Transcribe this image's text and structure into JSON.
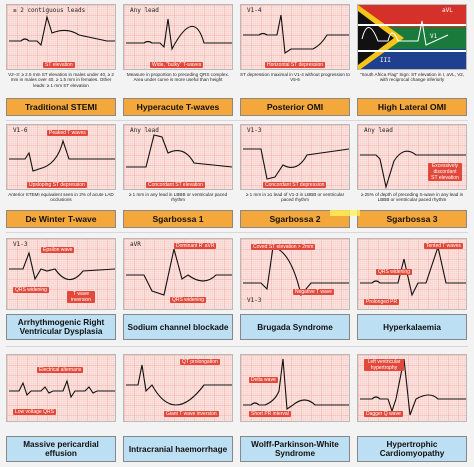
{
  "cards": [
    {
      "title": "Traditional STEMI",
      "lead": "≥ 2 contiguous leads",
      "tags": [
        "ST elevation"
      ],
      "caption": "V2–3: ≥ 2.5 mm ST elevation in males under 40, ≥ 2 mm in males over 40, ≥ 1.5 mm in females. Other leads: ≥ 1 mm ST elevation"
    },
    {
      "title": "Hyperacute T-waves",
      "lead": "Any lead",
      "tags": [
        "Wide, \"bulky\" T-waves"
      ],
      "caption": "Measure in proportion to preceding QRS complex. Area under curve is more useful than height"
    },
    {
      "title": "Posterior OMI",
      "lead": "V1-4",
      "tags": [
        "Horizontal ST depression"
      ],
      "caption": "ST depression maximal in V1-4 without progression to V5-6"
    },
    {
      "title": "High Lateral OMI",
      "lead": "",
      "tags": [
        "III",
        "aVL",
        "V1"
      ],
      "caption": "\"South Africa Flag\" Sign: ST elevation in I, aVL, V2, with reciprocal change inferiorly"
    },
    {
      "title": "De Winter T-wave",
      "lead": "V1-6",
      "tags": [
        "Peaked T waves",
        "Upsloping ST depression"
      ],
      "caption": "Anterior STEMI equivalent seen in 2% of acute LAD occlusions"
    },
    {
      "title": "Sgarbossa 1",
      "lead": "Any lead",
      "tags": [
        "Concordant ST elevation"
      ],
      "caption": "≥ 1 mm in any lead in LBBB or ventricular paced rhythm"
    },
    {
      "title": "Sgarbossa 2",
      "lead": "V1-3",
      "tags": [
        "Concordant ST depression"
      ],
      "caption": "≥ 1 mm in ≥1 lead of V1-3 in LBBB or ventricular paced rhythm"
    },
    {
      "title": "Sgarbossa 3",
      "lead": "Any lead",
      "tags": [
        "Excessively discordant ST elevation"
      ],
      "caption": "≥ 25% of depth of preceding S-wave in any lead in LBBB or ventricular paced rhythm"
    },
    {
      "title": "Arrhythmogenic Right Ventricular Dysplasia",
      "lead": "V1-3",
      "tags": [
        "Epsilon wave",
        "QRS widening",
        "T wave inversion"
      ],
      "caption": ""
    },
    {
      "title": "Sodium channel blockade",
      "lead": "aVR",
      "tags": [
        "Dominant R' aVR",
        "QRS widening"
      ],
      "caption": ""
    },
    {
      "title": "Brugada Syndrome",
      "lead": "V1-3",
      "tags": [
        "Coved ST elevation > 2mm",
        "Negative T wave"
      ],
      "caption": ""
    },
    {
      "title": "Hyperkalaemia",
      "lead": "",
      "tags": [
        "Tented T waves",
        "QRS widening",
        "Prolonged PR"
      ],
      "caption": ""
    },
    {
      "title": "Massive pericardial effusion",
      "lead": "",
      "tags": [
        "Electrical alternans",
        "Low voltage QRS"
      ],
      "caption": ""
    },
    {
      "title": "Intracranial haemorrhage",
      "lead": "",
      "tags": [
        "QT prolongation",
        "Giant T wave inversion"
      ],
      "caption": ""
    },
    {
      "title": "Wolff-Parkinson-White Syndrome",
      "lead": "",
      "tags": [
        "Delta wave",
        "Short PR interval"
      ],
      "caption": ""
    },
    {
      "title": "Hypertrophic Cardiomyopathy",
      "lead": "",
      "tags": [
        "Left ventricular hypertrophy",
        "Dagger Q wave"
      ],
      "caption": ""
    }
  ]
}
